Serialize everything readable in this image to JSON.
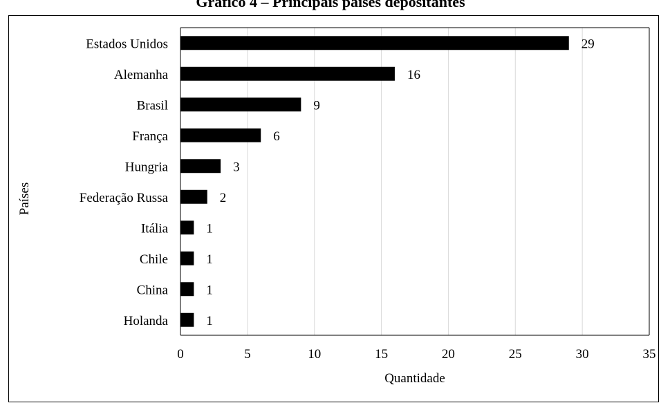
{
  "title": "Gráfico 4 – Principais países depositantes",
  "chart_data": {
    "type": "bar",
    "orientation": "horizontal",
    "categories": [
      "Estados Unidos",
      "Alemanha",
      "Brasil",
      "França",
      "Hungria",
      "Federação Russa",
      "Itália",
      "Chile",
      "China",
      "Holanda"
    ],
    "values": [
      29,
      16,
      9,
      6,
      3,
      2,
      1,
      1,
      1,
      1
    ],
    "xlabel": "Quantidade",
    "ylabel": "Países",
    "xlim": [
      0,
      35
    ],
    "x_ticks": [
      0,
      5,
      10,
      15,
      20,
      25,
      30,
      35
    ],
    "grid": true,
    "data_labels": true,
    "bar_color": "#000000",
    "grid_color": "#d9d9d9"
  }
}
